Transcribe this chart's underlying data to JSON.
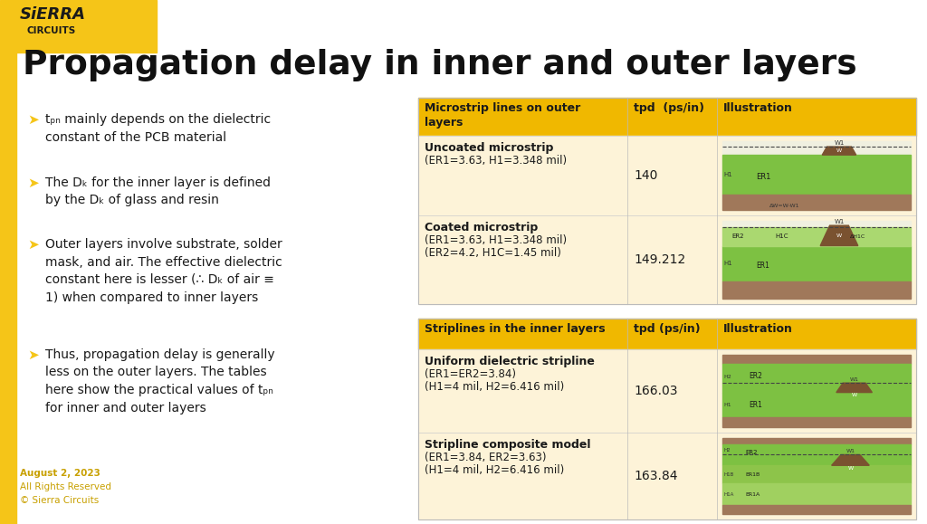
{
  "bg_color": "#ffffff",
  "logo_yellow": "#f5c518",
  "title": "Propagation delay in inner and outer layers",
  "bullet_color": "#1a1a1a",
  "bullet_arrow_color": "#f5c518",
  "table1_header": [
    "Microstrip lines on outer\nlayers",
    "tpd  (ps/in)",
    "Illustration"
  ],
  "table1_header_bg": "#f0b800",
  "table1_row_bg": "#fdf3d8",
  "table1_rows": [
    {
      "name": "Uncoated microstrip",
      "params": "(ER1=3.63, H1=3.348 mil)",
      "tpd": "140"
    },
    {
      "name": "Coated microstrip",
      "params": "(ER1=3.63, H1=3.348 mil)\n(ER2=4.2, H1C=1.45 mil)",
      "tpd": "149.212"
    }
  ],
  "table2_header": [
    "Striplines in the inner layers",
    "tpd (ps/in)",
    "Illustration"
  ],
  "table2_header_bg": "#f0b800",
  "table2_row_bg": "#fdf3d8",
  "table2_rows": [
    {
      "name": "Uniform dielectric stripline",
      "params": "(ER1=ER2=3.84)\n(H1=4 mil, H2=6.416 mil)",
      "tpd": "166.03"
    },
    {
      "name": "Stripline composite model",
      "params": "(ER1=3.84, ER2=3.63)\n(H1=4 mil, H2=6.416 mil)",
      "tpd": "163.84"
    }
  ],
  "footer_date": "August 2, 2023",
  "footer_rights": "All Rights Reserved",
  "footer_copy": "© Sierra Circuits",
  "footer_color": "#c8a000",
  "green_color": "#7dc142",
  "brown_color": "#a0785a",
  "dark_brown": "#7a5230"
}
